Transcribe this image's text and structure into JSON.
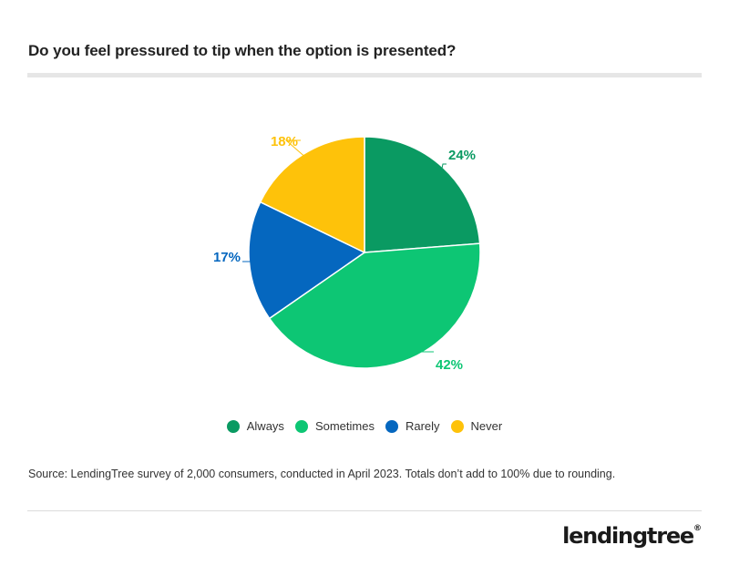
{
  "title": "Do you feel pressured to tip when the option is presented?",
  "source": "Source: LendingTree survey of 2,000 consumers, conducted in April 2023. Totals don’t add to 100% due to rounding.",
  "brand": {
    "name": "lendingtree",
    "registered": "®"
  },
  "colors": {
    "always": "#0a9a62",
    "sometimes": "#0dc674",
    "rarely": "#0567bf",
    "never": "#fec20a"
  },
  "chart_data": {
    "type": "pie",
    "title": "Do you feel pressured to tip when the option is presented?",
    "start_angle_deg": 0,
    "direction": "clockwise",
    "labels": [
      "Always",
      "Sometimes",
      "Rarely",
      "Never"
    ],
    "values": [
      24,
      42,
      17,
      18
    ],
    "value_labels": [
      "24%",
      "42%",
      "17%",
      "18%"
    ],
    "colors": [
      "#0a9a62",
      "#0dc674",
      "#0567bf",
      "#fec20a"
    ],
    "legend_position": "bottom-center"
  }
}
